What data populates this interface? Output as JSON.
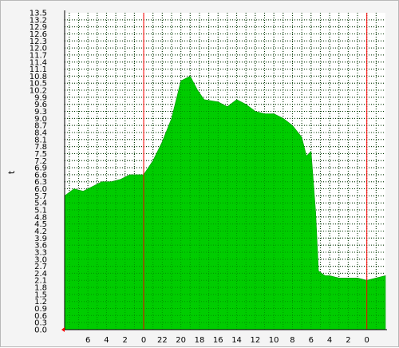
{
  "chart_data": {
    "type": "area",
    "ylabel": "t",
    "ylim": [
      0,
      13.5
    ],
    "y_ticks": [
      "0.0",
      "0.3",
      "0.6",
      "0.9",
      "1.2",
      "1.5",
      "1.8",
      "2.1",
      "2.4",
      "2.7",
      "3.0",
      "3.3",
      "3.6",
      "3.9",
      "4.2",
      "4.5",
      "4.8",
      "5.1",
      "5.4",
      "5.7",
      "6.0",
      "6.3",
      "6.6",
      "6.9",
      "7.2",
      "7.5",
      "7.8",
      "8.1",
      "8.4",
      "8.7",
      "9.0",
      "9.3",
      "9.6",
      "9.9",
      "10.2",
      "10.5",
      "10.8",
      "11.1",
      "11.4",
      "11.7",
      "12.0",
      "12.3",
      "12.6",
      "12.9",
      "13.2",
      "13.5"
    ],
    "x_ticks": [
      "6",
      "4",
      "2",
      "0",
      "22",
      "20",
      "18",
      "16",
      "14",
      "12",
      "10",
      "8",
      "6",
      "4",
      "2",
      "0"
    ],
    "x_hours_before_now": [
      31,
      29,
      27,
      25,
      23,
      21,
      19,
      17,
      15,
      13,
      11,
      9,
      7,
      5,
      3,
      1
    ],
    "day_boundaries_hours_before_now": [
      25,
      1
    ],
    "x_range_hours_before_now": [
      33.5,
      -1
    ],
    "grid": true,
    "colors": {
      "area": "#00cc00",
      "area_edge": "#009900",
      "grid": "#000000",
      "day_line": "#ff0000",
      "plot_bg": "#ffffff",
      "text": "#000000"
    },
    "series": [
      {
        "points": [
          [
            33.5,
            5.7
          ],
          [
            32.5,
            6.0
          ],
          [
            31.5,
            5.9
          ],
          [
            30.5,
            6.1
          ],
          [
            29.5,
            6.3
          ],
          [
            28.5,
            6.3
          ],
          [
            27.5,
            6.4
          ],
          [
            26.5,
            6.6
          ],
          [
            25.5,
            6.6
          ],
          [
            25,
            6.6
          ],
          [
            24,
            7.2
          ],
          [
            23,
            8.0
          ],
          [
            22,
            9.0
          ],
          [
            21,
            10.6
          ],
          [
            20,
            10.8
          ],
          [
            19.2,
            10.2
          ],
          [
            18.5,
            9.8
          ],
          [
            17,
            9.7
          ],
          [
            16,
            9.5
          ],
          [
            15,
            9.8
          ],
          [
            14,
            9.6
          ],
          [
            13,
            9.3
          ],
          [
            12,
            9.2
          ],
          [
            11,
            9.2
          ],
          [
            10,
            9.0
          ],
          [
            9,
            8.7
          ],
          [
            8,
            8.2
          ],
          [
            7.5,
            7.4
          ],
          [
            7,
            7.6
          ],
          [
            6.5,
            5.0
          ],
          [
            6.2,
            2.5
          ],
          [
            5.5,
            2.3
          ],
          [
            5,
            2.3
          ],
          [
            4,
            2.2
          ],
          [
            3,
            2.2
          ],
          [
            2,
            2.2
          ],
          [
            1,
            2.1
          ],
          [
            0,
            2.2
          ],
          [
            -1,
            2.3
          ]
        ]
      }
    ]
  }
}
